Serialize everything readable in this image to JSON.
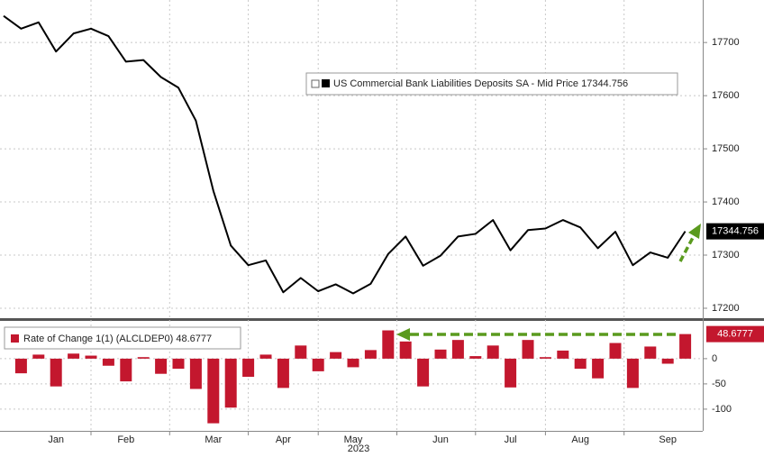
{
  "chart_data": [
    {
      "type": "line",
      "series": [
        {
          "name": "US Commercial Bank Liabilities Deposits SA - Mid Price 17344.756",
          "color": "#000000",
          "values": [
            17750,
            17726,
            17738,
            17683,
            17717,
            17726,
            17712,
            17664,
            17667,
            17635,
            17615,
            17553,
            17421,
            17318,
            17281,
            17290,
            17230,
            17257,
            17232,
            17245,
            17228,
            17246,
            17302,
            17335,
            17280,
            17299,
            17335,
            17340,
            17366,
            17309,
            17347,
            17350,
            17366,
            17352,
            17313,
            17344,
            17281,
            17305,
            17295,
            17344.756
          ]
        }
      ],
      "ylim": [
        17183,
        17780
      ],
      "yticks": [
        17200,
        17300,
        17400,
        17500,
        17600,
        17700
      ],
      "grid": true
    },
    {
      "type": "bar",
      "categories": [
        null,
        null,
        null,
        "Jan",
        null,
        null,
        null,
        "Feb",
        null,
        null,
        null,
        null,
        "Mar",
        null,
        null,
        null,
        "Apr",
        null,
        null,
        null,
        "May",
        null,
        null,
        null,
        null,
        "Jun",
        null,
        null,
        null,
        "Jul",
        null,
        null,
        null,
        "Aug",
        null,
        null,
        null,
        null,
        "Sep",
        null
      ],
      "x_label": "2023",
      "series": [
        {
          "name": "Rate of Change 1(1) (ALCLDEP0) 48.6777",
          "color": "#c3172e",
          "values": [
            null,
            -29,
            8,
            -55,
            10,
            6,
            -14,
            -45,
            3,
            -30,
            -20,
            -60,
            -128,
            -97,
            -36,
            8,
            -58,
            26,
            -25,
            13,
            -17,
            17,
            56,
            34,
            -55,
            18,
            37,
            5,
            26,
            -57,
            37,
            3,
            16,
            -20,
            -39,
            31,
            -58,
            24,
            -10,
            48.6777
          ]
        }
      ],
      "ylim": [
        -143,
        73
      ],
      "yticks": [
        -100,
        -50,
        0
      ],
      "grid": true
    }
  ]
}
